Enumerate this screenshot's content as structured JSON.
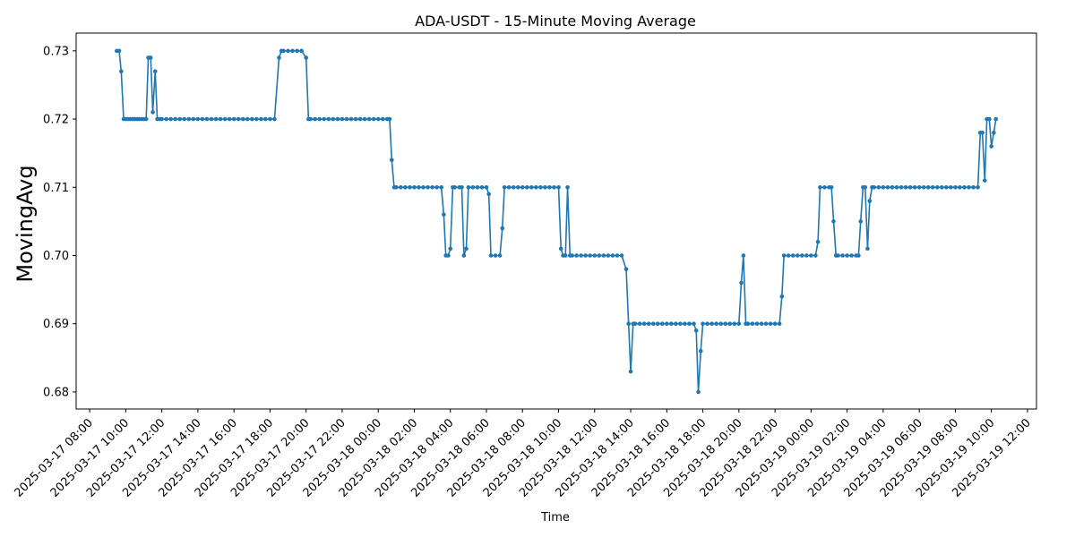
{
  "chart_data": {
    "type": "line",
    "title": "ADA-USDT - 15-Minute Moving Average",
    "xlabel": "Time",
    "ylabel": "MovingAvg",
    "x_range": [
      "2025-03-17 07:15",
      "2025-03-19 12:30"
    ],
    "ylim": [
      0.6775,
      0.7326
    ],
    "y_ticks": [
      0.68,
      0.69,
      0.7,
      0.71,
      0.72,
      0.73
    ],
    "x_ticks": [
      "2025-03-17 08:00",
      "2025-03-17 10:00",
      "2025-03-17 12:00",
      "2025-03-17 14:00",
      "2025-03-17 16:00",
      "2025-03-17 18:00",
      "2025-03-17 20:00",
      "2025-03-17 22:00",
      "2025-03-18 00:00",
      "2025-03-18 02:00",
      "2025-03-18 04:00",
      "2025-03-18 06:00",
      "2025-03-18 08:00",
      "2025-03-18 10:00",
      "2025-03-18 12:00",
      "2025-03-18 14:00",
      "2025-03-18 16:00",
      "2025-03-18 18:00",
      "2025-03-18 20:00",
      "2025-03-18 22:00",
      "2025-03-19 00:00",
      "2025-03-19 02:00",
      "2025-03-19 04:00",
      "2025-03-19 06:00",
      "2025-03-19 08:00",
      "2025-03-19 10:00",
      "2025-03-19 12:00"
    ],
    "grid": false,
    "series": [
      {
        "color": "#1f77b4",
        "points": [
          [
            "2025-03-17 09:30",
            0.73
          ],
          [
            "2025-03-17 09:38",
            0.73
          ],
          [
            "2025-03-17 09:45",
            0.727
          ],
          [
            "2025-03-17 09:53",
            0.72
          ],
          [
            "2025-03-17 10:00",
            0.72
          ],
          [
            "2025-03-17 10:08",
            0.72
          ],
          [
            "2025-03-17 10:15",
            0.72
          ],
          [
            "2025-03-17 10:23",
            0.72
          ],
          [
            "2025-03-17 10:30",
            0.72
          ],
          [
            "2025-03-17 10:38",
            0.72
          ],
          [
            "2025-03-17 10:45",
            0.72
          ],
          [
            "2025-03-17 10:53",
            0.72
          ],
          [
            "2025-03-17 11:00",
            0.72
          ],
          [
            "2025-03-17 11:08",
            0.72
          ],
          [
            "2025-03-17 11:15",
            0.729
          ],
          [
            "2025-03-17 11:23",
            0.729
          ],
          [
            "2025-03-17 11:30",
            0.721
          ],
          [
            "2025-03-17 11:38",
            0.727
          ],
          [
            "2025-03-17 11:45",
            0.72
          ],
          [
            "2025-03-17 11:53",
            0.72
          ],
          [
            "2025-03-17 12:00",
            0.72
          ],
          [
            "2025-03-17 12:15",
            0.72
          ],
          [
            "2025-03-17 12:30",
            0.72
          ],
          [
            "2025-03-17 12:45",
            0.72
          ],
          [
            "2025-03-17 13:00",
            0.72
          ],
          [
            "2025-03-17 13:15",
            0.72
          ],
          [
            "2025-03-17 13:30",
            0.72
          ],
          [
            "2025-03-17 13:45",
            0.72
          ],
          [
            "2025-03-17 14:00",
            0.72
          ],
          [
            "2025-03-17 14:15",
            0.72
          ],
          [
            "2025-03-17 14:30",
            0.72
          ],
          [
            "2025-03-17 14:45",
            0.72
          ],
          [
            "2025-03-17 15:00",
            0.72
          ],
          [
            "2025-03-17 15:15",
            0.72
          ],
          [
            "2025-03-17 15:30",
            0.72
          ],
          [
            "2025-03-17 15:45",
            0.72
          ],
          [
            "2025-03-17 16:00",
            0.72
          ],
          [
            "2025-03-17 16:15",
            0.72
          ],
          [
            "2025-03-17 16:30",
            0.72
          ],
          [
            "2025-03-17 16:45",
            0.72
          ],
          [
            "2025-03-17 17:00",
            0.72
          ],
          [
            "2025-03-17 17:15",
            0.72
          ],
          [
            "2025-03-17 17:30",
            0.72
          ],
          [
            "2025-03-17 17:45",
            0.72
          ],
          [
            "2025-03-17 18:00",
            0.72
          ],
          [
            "2025-03-17 18:15",
            0.72
          ],
          [
            "2025-03-17 18:30",
            0.729
          ],
          [
            "2025-03-17 18:38",
            0.73
          ],
          [
            "2025-03-17 18:45",
            0.73
          ],
          [
            "2025-03-17 19:00",
            0.73
          ],
          [
            "2025-03-17 19:15",
            0.73
          ],
          [
            "2025-03-17 19:30",
            0.73
          ],
          [
            "2025-03-17 19:45",
            0.73
          ],
          [
            "2025-03-17 20:00",
            0.729
          ],
          [
            "2025-03-17 20:08",
            0.72
          ],
          [
            "2025-03-17 20:15",
            0.72
          ],
          [
            "2025-03-17 20:30",
            0.72
          ],
          [
            "2025-03-17 20:45",
            0.72
          ],
          [
            "2025-03-17 21:00",
            0.72
          ],
          [
            "2025-03-17 21:15",
            0.72
          ],
          [
            "2025-03-17 21:30",
            0.72
          ],
          [
            "2025-03-17 21:45",
            0.72
          ],
          [
            "2025-03-17 22:00",
            0.72
          ],
          [
            "2025-03-17 22:15",
            0.72
          ],
          [
            "2025-03-17 22:30",
            0.72
          ],
          [
            "2025-03-17 22:45",
            0.72
          ],
          [
            "2025-03-17 23:00",
            0.72
          ],
          [
            "2025-03-17 23:15",
            0.72
          ],
          [
            "2025-03-17 23:30",
            0.72
          ],
          [
            "2025-03-17 23:45",
            0.72
          ],
          [
            "2025-03-18 00:00",
            0.72
          ],
          [
            "2025-03-18 00:15",
            0.72
          ],
          [
            "2025-03-18 00:30",
            0.72
          ],
          [
            "2025-03-18 00:38",
            0.72
          ],
          [
            "2025-03-18 00:45",
            0.714
          ],
          [
            "2025-03-18 00:53",
            0.71
          ],
          [
            "2025-03-18 01:00",
            0.71
          ],
          [
            "2025-03-18 01:15",
            0.71
          ],
          [
            "2025-03-18 01:30",
            0.71
          ],
          [
            "2025-03-18 01:45",
            0.71
          ],
          [
            "2025-03-18 02:00",
            0.71
          ],
          [
            "2025-03-18 02:15",
            0.71
          ],
          [
            "2025-03-18 02:30",
            0.71
          ],
          [
            "2025-03-18 02:45",
            0.71
          ],
          [
            "2025-03-18 03:00",
            0.71
          ],
          [
            "2025-03-18 03:15",
            0.71
          ],
          [
            "2025-03-18 03:30",
            0.71
          ],
          [
            "2025-03-18 03:38",
            0.706
          ],
          [
            "2025-03-18 03:45",
            0.7
          ],
          [
            "2025-03-18 03:53",
            0.7
          ],
          [
            "2025-03-18 04:00",
            0.701
          ],
          [
            "2025-03-18 04:08",
            0.71
          ],
          [
            "2025-03-18 04:15",
            0.71
          ],
          [
            "2025-03-18 04:30",
            0.71
          ],
          [
            "2025-03-18 04:38",
            0.71
          ],
          [
            "2025-03-18 04:45",
            0.7
          ],
          [
            "2025-03-18 04:53",
            0.701
          ],
          [
            "2025-03-18 05:00",
            0.71
          ],
          [
            "2025-03-18 05:15",
            0.71
          ],
          [
            "2025-03-18 05:30",
            0.71
          ],
          [
            "2025-03-18 05:45",
            0.71
          ],
          [
            "2025-03-18 06:00",
            0.71
          ],
          [
            "2025-03-18 06:08",
            0.709
          ],
          [
            "2025-03-18 06:15",
            0.7
          ],
          [
            "2025-03-18 06:30",
            0.7
          ],
          [
            "2025-03-18 06:45",
            0.7
          ],
          [
            "2025-03-18 06:53",
            0.704
          ],
          [
            "2025-03-18 07:00",
            0.71
          ],
          [
            "2025-03-18 07:15",
            0.71
          ],
          [
            "2025-03-18 07:30",
            0.71
          ],
          [
            "2025-03-18 07:45",
            0.71
          ],
          [
            "2025-03-18 08:00",
            0.71
          ],
          [
            "2025-03-18 08:15",
            0.71
          ],
          [
            "2025-03-18 08:30",
            0.71
          ],
          [
            "2025-03-18 08:45",
            0.71
          ],
          [
            "2025-03-18 09:00",
            0.71
          ],
          [
            "2025-03-18 09:15",
            0.71
          ],
          [
            "2025-03-18 09:30",
            0.71
          ],
          [
            "2025-03-18 09:45",
            0.71
          ],
          [
            "2025-03-18 10:00",
            0.71
          ],
          [
            "2025-03-18 10:08",
            0.701
          ],
          [
            "2025-03-18 10:15",
            0.7
          ],
          [
            "2025-03-18 10:23",
            0.7
          ],
          [
            "2025-03-18 10:30",
            0.71
          ],
          [
            "2025-03-18 10:38",
            0.7
          ],
          [
            "2025-03-18 10:45",
            0.7
          ],
          [
            "2025-03-18 11:00",
            0.7
          ],
          [
            "2025-03-18 11:15",
            0.7
          ],
          [
            "2025-03-18 11:30",
            0.7
          ],
          [
            "2025-03-18 11:45",
            0.7
          ],
          [
            "2025-03-18 12:00",
            0.7
          ],
          [
            "2025-03-18 12:15",
            0.7
          ],
          [
            "2025-03-18 12:30",
            0.7
          ],
          [
            "2025-03-18 12:45",
            0.7
          ],
          [
            "2025-03-18 13:00",
            0.7
          ],
          [
            "2025-03-18 13:15",
            0.7
          ],
          [
            "2025-03-18 13:30",
            0.7
          ],
          [
            "2025-03-18 13:45",
            0.698
          ],
          [
            "2025-03-18 13:53",
            0.69
          ],
          [
            "2025-03-18 14:00",
            0.683
          ],
          [
            "2025-03-18 14:08",
            0.69
          ],
          [
            "2025-03-18 14:15",
            0.69
          ],
          [
            "2025-03-18 14:30",
            0.69
          ],
          [
            "2025-03-18 14:45",
            0.69
          ],
          [
            "2025-03-18 15:00",
            0.69
          ],
          [
            "2025-03-18 15:15",
            0.69
          ],
          [
            "2025-03-18 15:30",
            0.69
          ],
          [
            "2025-03-18 15:45",
            0.69
          ],
          [
            "2025-03-18 16:00",
            0.69
          ],
          [
            "2025-03-18 16:15",
            0.69
          ],
          [
            "2025-03-18 16:30",
            0.69
          ],
          [
            "2025-03-18 16:45",
            0.69
          ],
          [
            "2025-03-18 17:00",
            0.69
          ],
          [
            "2025-03-18 17:15",
            0.69
          ],
          [
            "2025-03-18 17:30",
            0.69
          ],
          [
            "2025-03-18 17:38",
            0.689
          ],
          [
            "2025-03-18 17:45",
            0.68
          ],
          [
            "2025-03-18 17:53",
            0.686
          ],
          [
            "2025-03-18 18:00",
            0.69
          ],
          [
            "2025-03-18 18:15",
            0.69
          ],
          [
            "2025-03-18 18:30",
            0.69
          ],
          [
            "2025-03-18 18:45",
            0.69
          ],
          [
            "2025-03-18 19:00",
            0.69
          ],
          [
            "2025-03-18 19:15",
            0.69
          ],
          [
            "2025-03-18 19:30",
            0.69
          ],
          [
            "2025-03-18 19:45",
            0.69
          ],
          [
            "2025-03-18 20:00",
            0.69
          ],
          [
            "2025-03-18 20:08",
            0.696
          ],
          [
            "2025-03-18 20:15",
            0.7
          ],
          [
            "2025-03-18 20:23",
            0.69
          ],
          [
            "2025-03-18 20:30",
            0.69
          ],
          [
            "2025-03-18 20:45",
            0.69
          ],
          [
            "2025-03-18 21:00",
            0.69
          ],
          [
            "2025-03-18 21:15",
            0.69
          ],
          [
            "2025-03-18 21:30",
            0.69
          ],
          [
            "2025-03-18 21:45",
            0.69
          ],
          [
            "2025-03-18 22:00",
            0.69
          ],
          [
            "2025-03-18 22:15",
            0.69
          ],
          [
            "2025-03-18 22:23",
            0.694
          ],
          [
            "2025-03-18 22:30",
            0.7
          ],
          [
            "2025-03-18 22:45",
            0.7
          ],
          [
            "2025-03-18 23:00",
            0.7
          ],
          [
            "2025-03-18 23:15",
            0.7
          ],
          [
            "2025-03-18 23:30",
            0.7
          ],
          [
            "2025-03-18 23:45",
            0.7
          ],
          [
            "2025-03-19 00:00",
            0.7
          ],
          [
            "2025-03-19 00:15",
            0.7
          ],
          [
            "2025-03-19 00:23",
            0.702
          ],
          [
            "2025-03-19 00:30",
            0.71
          ],
          [
            "2025-03-19 00:45",
            0.71
          ],
          [
            "2025-03-19 01:00",
            0.71
          ],
          [
            "2025-03-19 01:08",
            0.71
          ],
          [
            "2025-03-19 01:15",
            0.705
          ],
          [
            "2025-03-19 01:23",
            0.7
          ],
          [
            "2025-03-19 01:30",
            0.7
          ],
          [
            "2025-03-19 01:45",
            0.7
          ],
          [
            "2025-03-19 02:00",
            0.7
          ],
          [
            "2025-03-19 02:15",
            0.7
          ],
          [
            "2025-03-19 02:30",
            0.7
          ],
          [
            "2025-03-19 02:38",
            0.7
          ],
          [
            "2025-03-19 02:45",
            0.705
          ],
          [
            "2025-03-19 02:53",
            0.71
          ],
          [
            "2025-03-19 03:00",
            0.71
          ],
          [
            "2025-03-19 03:08",
            0.701
          ],
          [
            "2025-03-19 03:15",
            0.708
          ],
          [
            "2025-03-19 03:23",
            0.71
          ],
          [
            "2025-03-19 03:30",
            0.71
          ],
          [
            "2025-03-19 03:45",
            0.71
          ],
          [
            "2025-03-19 04:00",
            0.71
          ],
          [
            "2025-03-19 04:15",
            0.71
          ],
          [
            "2025-03-19 04:30",
            0.71
          ],
          [
            "2025-03-19 04:45",
            0.71
          ],
          [
            "2025-03-19 05:00",
            0.71
          ],
          [
            "2025-03-19 05:15",
            0.71
          ],
          [
            "2025-03-19 05:30",
            0.71
          ],
          [
            "2025-03-19 05:45",
            0.71
          ],
          [
            "2025-03-19 06:00",
            0.71
          ],
          [
            "2025-03-19 06:15",
            0.71
          ],
          [
            "2025-03-19 06:30",
            0.71
          ],
          [
            "2025-03-19 06:45",
            0.71
          ],
          [
            "2025-03-19 07:00",
            0.71
          ],
          [
            "2025-03-19 07:15",
            0.71
          ],
          [
            "2025-03-19 07:30",
            0.71
          ],
          [
            "2025-03-19 07:45",
            0.71
          ],
          [
            "2025-03-19 08:00",
            0.71
          ],
          [
            "2025-03-19 08:15",
            0.71
          ],
          [
            "2025-03-19 08:30",
            0.71
          ],
          [
            "2025-03-19 08:45",
            0.71
          ],
          [
            "2025-03-19 09:00",
            0.71
          ],
          [
            "2025-03-19 09:15",
            0.71
          ],
          [
            "2025-03-19 09:23",
            0.718
          ],
          [
            "2025-03-19 09:30",
            0.718
          ],
          [
            "2025-03-19 09:38",
            0.711
          ],
          [
            "2025-03-19 09:45",
            0.72
          ],
          [
            "2025-03-19 09:53",
            0.72
          ],
          [
            "2025-03-19 10:00",
            0.716
          ],
          [
            "2025-03-19 10:08",
            0.718
          ],
          [
            "2025-03-19 10:15",
            0.72
          ]
        ]
      }
    ]
  }
}
